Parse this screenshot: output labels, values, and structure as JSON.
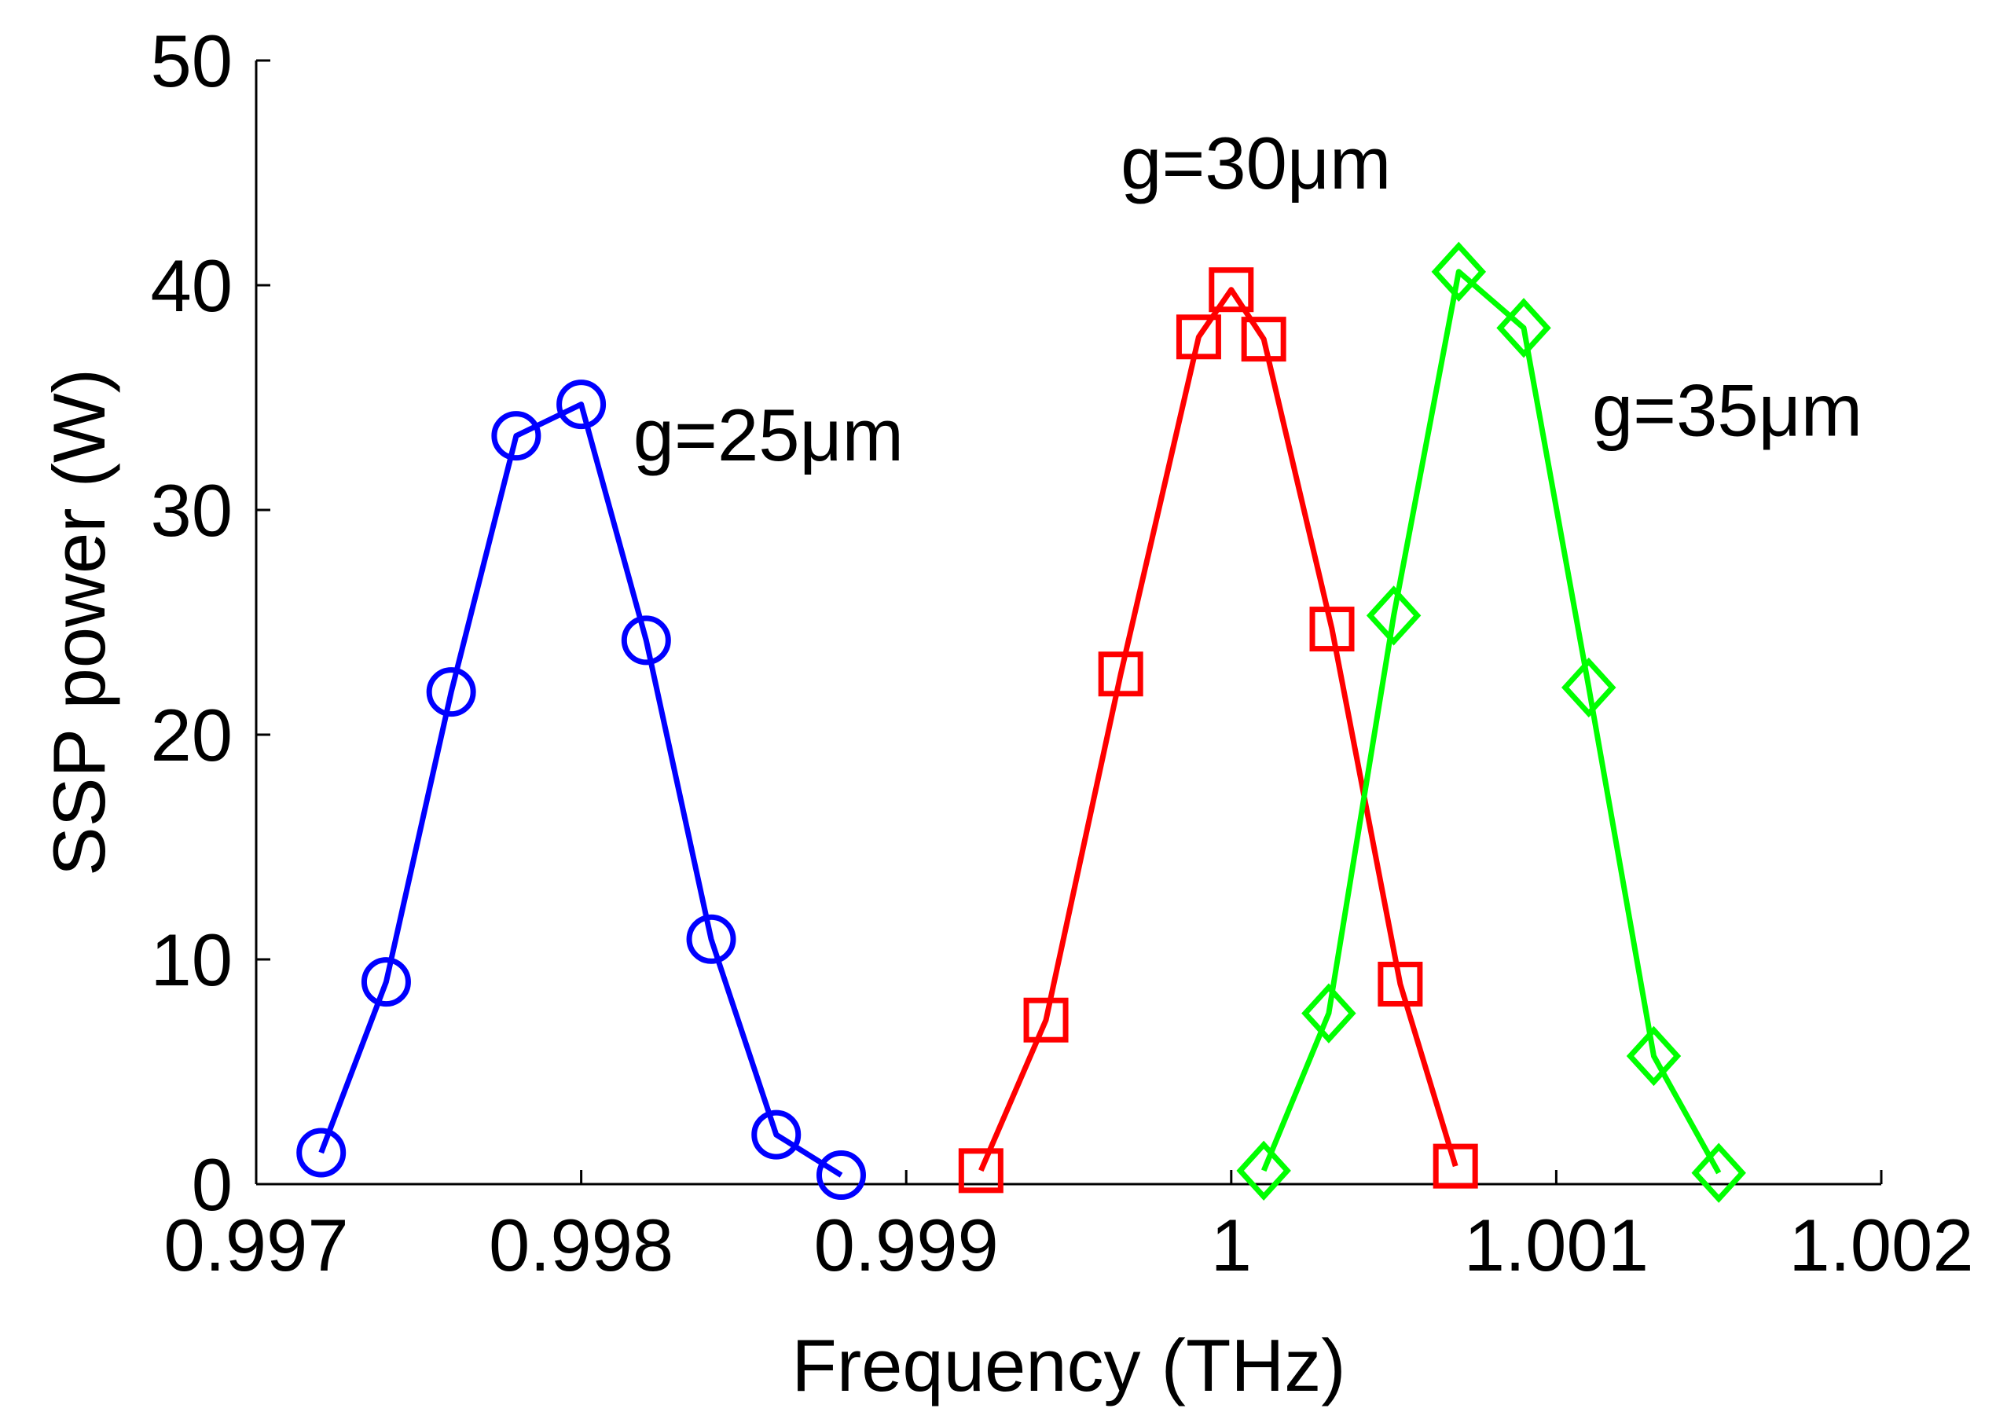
{
  "chart_data": {
    "type": "line",
    "title": "",
    "xlabel": "Frequency (THz)",
    "ylabel": "SSP power (W)",
    "xlim": [
      0.997,
      1.002
    ],
    "ylim": [
      0,
      50
    ],
    "grid": false,
    "x_ticks": [
      0.997,
      0.998,
      0.999,
      1,
      1.001,
      1.002
    ],
    "x_tick_labels": [
      "0.997",
      "0.998",
      "0.999",
      "1",
      "1.001",
      "1.002"
    ],
    "y_ticks": [
      0,
      10,
      20,
      30,
      40,
      50
    ],
    "y_tick_labels": [
      "0",
      "10",
      "20",
      "30",
      "40",
      "50"
    ],
    "series": [
      {
        "name": "g=25μm",
        "color": "#0000ff",
        "marker": "circle",
        "x": [
          0.9972,
          0.9974,
          0.9976,
          0.9978,
          0.998,
          0.9982,
          0.9984,
          0.9986,
          0.9988
        ],
        "y": [
          1.4,
          9.0,
          21.9,
          33.3,
          34.7,
          24.2,
          10.9,
          2.2,
          0.4
        ]
      },
      {
        "name": "g=30μm",
        "color": "#ff0000",
        "marker": "square",
        "x": [
          0.99923,
          0.99943,
          0.99966,
          0.9999,
          1.0,
          1.0001,
          1.00031,
          1.00052,
          1.00069
        ],
        "y": [
          0.6,
          7.3,
          22.7,
          37.7,
          39.8,
          37.6,
          24.7,
          8.9,
          0.8
        ]
      },
      {
        "name": "g=35μm",
        "color": "#00ff00",
        "marker": "diamond",
        "x": [
          1.0001,
          1.0003,
          1.0005,
          1.0007,
          1.0009,
          1.0011,
          1.0013,
          1.0015
        ],
        "y": [
          0.6,
          7.6,
          25.3,
          40.6,
          38.1,
          22.1,
          5.7,
          0.5
        ]
      }
    ],
    "annotations": [
      {
        "text": "g=25μm",
        "x": 0.99816,
        "y": 32.2
      },
      {
        "text": "g=30μm",
        "x": 0.99966,
        "y": 44.3
      },
      {
        "text": "g=35μm",
        "x": 1.00111,
        "y": 33.3
      }
    ]
  }
}
